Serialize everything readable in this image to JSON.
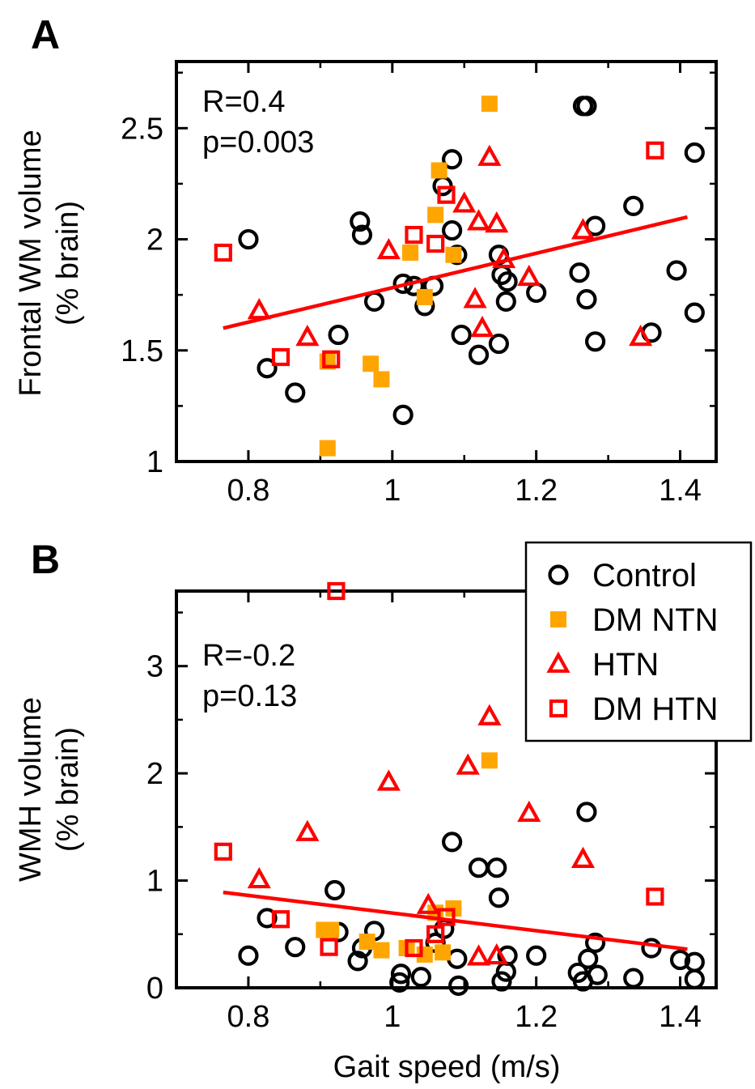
{
  "chart_data": [
    {
      "type": "scatter",
      "panel_label": "A",
      "ylabel_line1": "Frontal WM volume",
      "ylabel_line2": "(% brain)",
      "xlabel": "",
      "xlim": [
        0.7,
        1.45
      ],
      "ylim": [
        1.0,
        2.8
      ],
      "xticks": [
        0.8,
        1.0,
        1.2,
        1.4
      ],
      "xtick_labels": [
        "0.8",
        "1",
        "1.2",
        "1.4"
      ],
      "yticks": [
        1.0,
        1.5,
        2.0,
        2.5
      ],
      "ytick_labels": [
        "1",
        "1.5",
        "2",
        "2.5"
      ],
      "stats": [
        "R=0.4",
        "p=0.003"
      ],
      "fit_line": {
        "color": "#ff0000",
        "x": [
          0.765,
          1.41
        ],
        "y": [
          1.6,
          2.1
        ]
      },
      "series": [
        {
          "marker": "circle-open",
          "color": "#000000",
          "points": [
            [
              0.8,
              2.0
            ],
            [
              0.826,
              1.42
            ],
            [
              0.865,
              1.31
            ],
            [
              0.925,
              1.57
            ],
            [
              0.955,
              2.08
            ],
            [
              0.958,
              2.02
            ],
            [
              0.975,
              1.72
            ],
            [
              1.015,
              1.21
            ],
            [
              1.015,
              1.8
            ],
            [
              1.03,
              1.79
            ],
            [
              1.045,
              1.7
            ],
            [
              1.057,
              1.79
            ],
            [
              1.07,
              2.24
            ],
            [
              1.083,
              2.36
            ],
            [
              1.083,
              2.04
            ],
            [
              1.09,
              1.93
            ],
            [
              1.096,
              1.57
            ],
            [
              1.12,
              1.48
            ],
            [
              1.148,
              1.53
            ],
            [
              1.148,
              1.93
            ],
            [
              1.152,
              1.84
            ],
            [
              1.158,
              1.72
            ],
            [
              1.16,
              1.81
            ],
            [
              1.2,
              1.76
            ],
            [
              1.26,
              1.85
            ],
            [
              1.265,
              2.6
            ],
            [
              1.27,
              2.6
            ],
            [
              1.27,
              1.73
            ],
            [
              1.282,
              1.54
            ],
            [
              1.282,
              2.06
            ],
            [
              1.335,
              2.15
            ],
            [
              1.36,
              1.58
            ],
            [
              1.395,
              1.86
            ],
            [
              1.42,
              2.39
            ],
            [
              1.42,
              1.67
            ]
          ]
        },
        {
          "marker": "square-filled",
          "color": "#ffa500",
          "points": [
            [
              0.91,
              1.06
            ],
            [
              0.91,
              1.45
            ],
            [
              0.97,
              1.44
            ],
            [
              0.985,
              1.37
            ],
            [
              1.025,
              1.94
            ],
            [
              1.045,
              1.74
            ],
            [
              1.06,
              2.11
            ],
            [
              1.065,
              2.31
            ],
            [
              1.085,
              1.93
            ],
            [
              1.135,
              2.61
            ]
          ]
        },
        {
          "marker": "triangle-open",
          "color": "#ff0000",
          "points": [
            [
              0.815,
              1.68
            ],
            [
              0.882,
              1.56
            ],
            [
              0.995,
              1.95
            ],
            [
              1.1,
              2.16
            ],
            [
              1.115,
              1.73
            ],
            [
              1.12,
              2.08
            ],
            [
              1.125,
              1.6
            ],
            [
              1.135,
              2.37
            ],
            [
              1.145,
              2.07
            ],
            [
              1.155,
              1.91
            ],
            [
              1.19,
              1.83
            ],
            [
              1.265,
              2.04
            ],
            [
              1.345,
              1.56
            ]
          ]
        },
        {
          "marker": "square-open",
          "color": "#ff0000",
          "points": [
            [
              0.765,
              1.94
            ],
            [
              0.845,
              1.47
            ],
            [
              0.915,
              1.46
            ],
            [
              1.03,
              2.02
            ],
            [
              1.06,
              1.98
            ],
            [
              1.075,
              2.2
            ],
            [
              1.365,
              2.4
            ]
          ]
        }
      ]
    },
    {
      "type": "scatter",
      "panel_label": "B",
      "ylabel_line1": "WMH volume",
      "ylabel_line2": "(% brain)",
      "xlabel": "Gait speed (m/s)",
      "xlim": [
        0.7,
        1.45
      ],
      "ylim": [
        0.0,
        3.7
      ],
      "xticks": [
        0.8,
        1.0,
        1.2,
        1.4
      ],
      "xtick_labels": [
        "0.8",
        "1",
        "1.2",
        "1.4"
      ],
      "yticks": [
        0,
        1,
        2,
        3
      ],
      "ytick_labels": [
        "0",
        "1",
        "2",
        "3"
      ],
      "stats": [
        "R=-0.2",
        "p=0.13"
      ],
      "fit_line": {
        "color": "#ff0000",
        "x": [
          0.765,
          1.41
        ],
        "y": [
          0.89,
          0.36
        ]
      },
      "legend": {
        "placement": "top-right",
        "entries": [
          {
            "label": "Control",
            "marker": "circle-open",
            "color": "#000000"
          },
          {
            "label": "DM NTN",
            "marker": "square-filled",
            "color": "#ffa500"
          },
          {
            "label": "HTN",
            "marker": "triangle-open",
            "color": "#ff0000"
          },
          {
            "label": "DM HTN",
            "marker": "square-open",
            "color": "#ff0000"
          }
        ]
      },
      "series": [
        {
          "marker": "circle-open",
          "color": "#000000",
          "points": [
            [
              0.8,
              0.3
            ],
            [
              0.826,
              0.65
            ],
            [
              0.865,
              0.38
            ],
            [
              0.92,
              0.91
            ],
            [
              0.925,
              0.52
            ],
            [
              0.952,
              0.25
            ],
            [
              0.958,
              0.37
            ],
            [
              0.975,
              0.53
            ],
            [
              1.01,
              0.05
            ],
            [
              1.012,
              0.13
            ],
            [
              1.04,
              0.1
            ],
            [
              1.06,
              0.42
            ],
            [
              1.072,
              0.55
            ],
            [
              1.083,
              1.36
            ],
            [
              1.09,
              0.27
            ],
            [
              1.092,
              0.02
            ],
            [
              1.12,
              1.12
            ],
            [
              1.145,
              1.12
            ],
            [
              1.148,
              0.84
            ],
            [
              1.152,
              0.06
            ],
            [
              1.158,
              0.15
            ],
            [
              1.16,
              0.3
            ],
            [
              1.2,
              0.3
            ],
            [
              1.258,
              0.14
            ],
            [
              1.265,
              0.06
            ],
            [
              1.27,
              1.64
            ],
            [
              1.272,
              0.27
            ],
            [
              1.282,
              0.42
            ],
            [
              1.285,
              0.12
            ],
            [
              1.335,
              0.09
            ],
            [
              1.36,
              0.37
            ],
            [
              1.4,
              0.26
            ],
            [
              1.42,
              0.24
            ],
            [
              1.42,
              0.08
            ]
          ]
        },
        {
          "marker": "square-filled",
          "color": "#ffa500",
          "points": [
            [
              0.905,
              0.54
            ],
            [
              0.915,
              0.54
            ],
            [
              0.965,
              0.43
            ],
            [
              0.985,
              0.35
            ],
            [
              1.02,
              0.37
            ],
            [
              1.045,
              0.31
            ],
            [
              1.06,
              0.7
            ],
            [
              1.07,
              0.33
            ],
            [
              1.085,
              0.74
            ],
            [
              1.135,
              2.12
            ]
          ]
        },
        {
          "marker": "triangle-open",
          "color": "#ff0000",
          "points": [
            [
              0.815,
              1.01
            ],
            [
              0.882,
              1.45
            ],
            [
              0.995,
              1.92
            ],
            [
              1.05,
              0.77
            ],
            [
              1.105,
              2.07
            ],
            [
              1.12,
              0.29
            ],
            [
              1.135,
              2.53
            ],
            [
              1.145,
              0.3
            ],
            [
              1.19,
              1.63
            ],
            [
              1.265,
              1.2
            ]
          ]
        },
        {
          "marker": "square-open",
          "color": "#ff0000",
          "points": [
            [
              0.765,
              1.27
            ],
            [
              0.845,
              0.64
            ],
            [
              0.912,
              0.38
            ],
            [
              0.922,
              3.7
            ],
            [
              1.03,
              0.37
            ],
            [
              1.06,
              0.5
            ],
            [
              1.075,
              0.66
            ],
            [
              1.365,
              0.85
            ]
          ]
        }
      ]
    }
  ]
}
